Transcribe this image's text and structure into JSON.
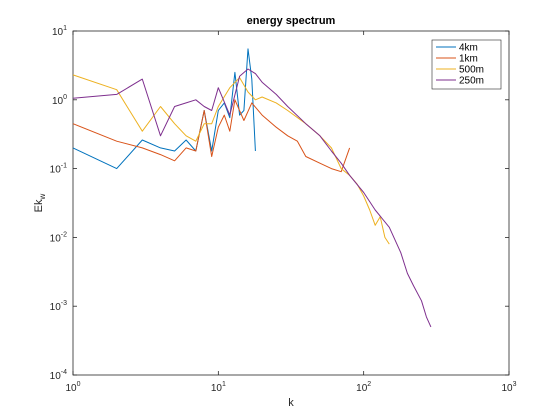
{
  "chart_data": {
    "type": "line",
    "title": "energy spectrum",
    "xlabel": "k",
    "ylabel": {
      "base": "Ek",
      "sub": "w"
    },
    "xscale": "log",
    "yscale": "log",
    "xlim": [
      1,
      1000
    ],
    "ylim": [
      0.0001,
      10
    ],
    "xticks": [
      {
        "value": 1,
        "mantissa": "10",
        "exp": "0"
      },
      {
        "value": 10,
        "mantissa": "10",
        "exp": "1"
      },
      {
        "value": 100,
        "mantissa": "10",
        "exp": "2"
      },
      {
        "value": 1000,
        "mantissa": "10",
        "exp": "3"
      }
    ],
    "yticks": [
      {
        "value": 0.0001,
        "mantissa": "10",
        "exp": "-4"
      },
      {
        "value": 0.001,
        "mantissa": "10",
        "exp": "-3"
      },
      {
        "value": 0.01,
        "mantissa": "10",
        "exp": "-2"
      },
      {
        "value": 0.1,
        "mantissa": "10",
        "exp": "-1"
      },
      {
        "value": 1,
        "mantissa": "10",
        "exp": "0"
      },
      {
        "value": 10,
        "mantissa": "10",
        "exp": "1"
      }
    ],
    "grid": false,
    "legend_position": "top-right",
    "series": [
      {
        "name": "4km",
        "color": "#0072BD",
        "x": [
          1,
          2,
          3,
          4,
          5,
          6,
          7,
          8,
          9,
          10,
          11,
          12,
          13,
          14,
          15,
          16,
          17,
          18
        ],
        "y": [
          0.2,
          0.1,
          0.26,
          0.2,
          0.18,
          0.26,
          0.18,
          0.7,
          0.18,
          0.7,
          0.9,
          0.55,
          2.5,
          0.6,
          0.7,
          5.5,
          2.0,
          0.18
        ]
      },
      {
        "name": "1km",
        "color": "#D95319",
        "x": [
          1,
          2,
          3,
          4,
          5,
          6,
          7,
          8,
          9,
          10,
          11,
          12,
          13,
          15,
          17,
          20,
          25,
          30,
          35,
          40,
          50,
          60,
          70,
          80
        ],
        "y": [
          0.45,
          0.25,
          0.2,
          0.16,
          0.13,
          0.2,
          0.18,
          0.7,
          0.15,
          0.4,
          0.6,
          0.35,
          1.0,
          0.5,
          0.9,
          0.6,
          0.4,
          0.3,
          0.25,
          0.15,
          0.12,
          0.1,
          0.09,
          0.2
        ]
      },
      {
        "name": "500m",
        "color": "#EDB120",
        "x": [
          1,
          2,
          3,
          4,
          5,
          6,
          7,
          8,
          9,
          10,
          12,
          14,
          16,
          18,
          20,
          25,
          30,
          40,
          50,
          60,
          70,
          80,
          90,
          100,
          110,
          120,
          130,
          140,
          150
        ],
        "y": [
          2.3,
          1.4,
          0.35,
          0.8,
          0.45,
          0.3,
          0.25,
          0.45,
          0.45,
          0.8,
          1.5,
          2.1,
          1.3,
          1.0,
          1.1,
          0.9,
          0.7,
          0.45,
          0.3,
          0.2,
          0.1,
          0.08,
          0.06,
          0.04,
          0.025,
          0.015,
          0.02,
          0.01,
          0.008
        ]
      },
      {
        "name": "250m",
        "color": "#7E2F8E",
        "x": [
          1,
          2,
          3,
          4,
          5,
          6,
          7,
          8,
          9,
          10,
          12,
          14,
          16,
          18,
          20,
          25,
          30,
          40,
          50,
          60,
          70,
          80,
          100,
          120,
          150,
          180,
          200,
          220,
          250,
          270,
          290
        ],
        "y": [
          1.05,
          1.2,
          2.0,
          0.3,
          0.8,
          0.9,
          1.0,
          0.8,
          0.7,
          1.5,
          0.6,
          2.2,
          2.8,
          2.4,
          1.8,
          1.2,
          0.8,
          0.45,
          0.3,
          0.18,
          0.12,
          0.08,
          0.045,
          0.025,
          0.014,
          0.006,
          0.003,
          0.002,
          0.0012,
          0.0007,
          0.0005
        ]
      }
    ]
  }
}
